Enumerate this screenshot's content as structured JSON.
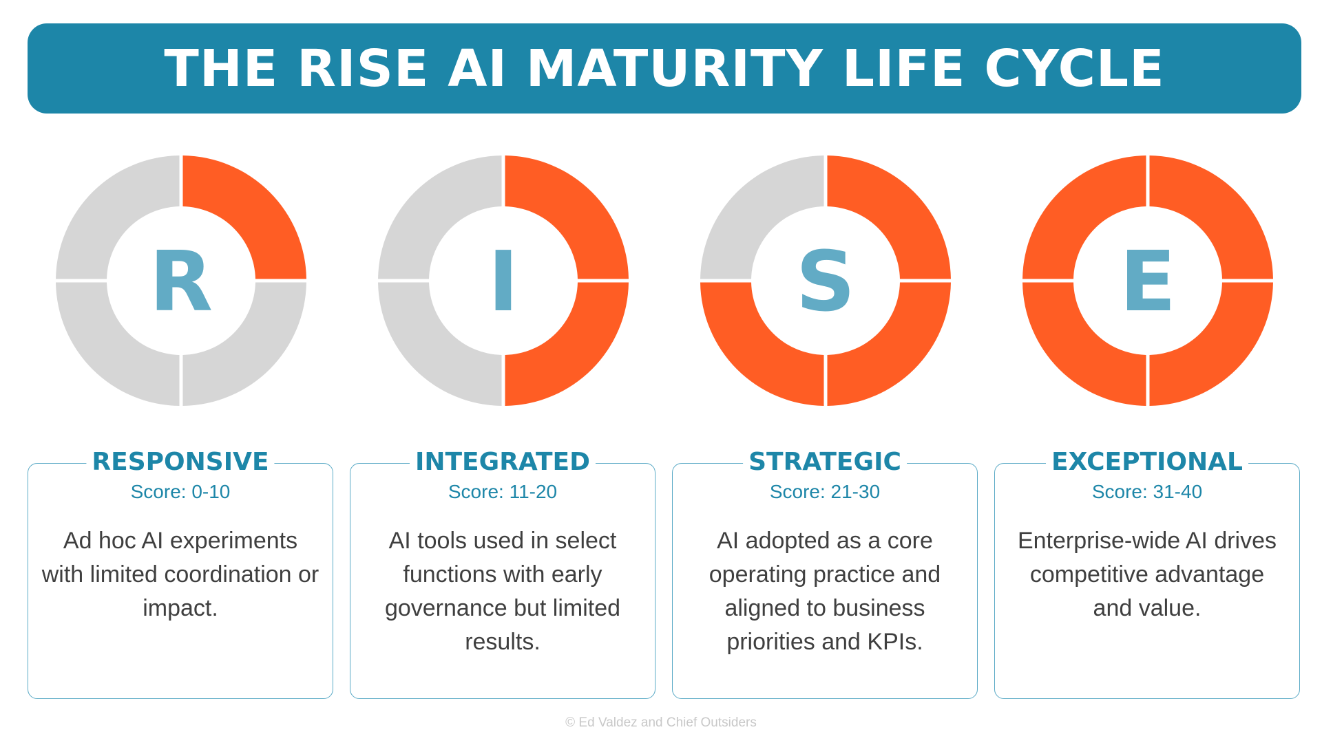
{
  "title": "THE RISE AI MATURITY LIFE CYCLE",
  "colors": {
    "banner": "#1d86a8",
    "filled": "#ff5d24",
    "empty": "#d6d6d6",
    "letter": "#62abc5",
    "heading": "#1d86a8",
    "body_text": "#3f3f3f"
  },
  "stages": [
    {
      "letter": "R",
      "name": "RESPONSIVE",
      "score": "Score: 0-10",
      "description": "Ad hoc AI experiments with limited coordination or impact.",
      "filled_quarters": 1
    },
    {
      "letter": "I",
      "name": "INTEGRATED",
      "score": "Score: 11-20",
      "description": "AI tools used in select functions with early governance but limited results.",
      "filled_quarters": 2
    },
    {
      "letter": "S",
      "name": "STRATEGIC",
      "score": "Score: 21-30",
      "description": "AI adopted as a core operating practice and aligned to business priorities and KPIs.",
      "filled_quarters": 3
    },
    {
      "letter": "E",
      "name": "EXCEPTIONAL",
      "score": "Score: 31-40",
      "description": "Enterprise-wide AI drives competitive advantage and value.",
      "filled_quarters": 4
    }
  ],
  "copyright": "© Ed Valdez and Chief Outsiders"
}
